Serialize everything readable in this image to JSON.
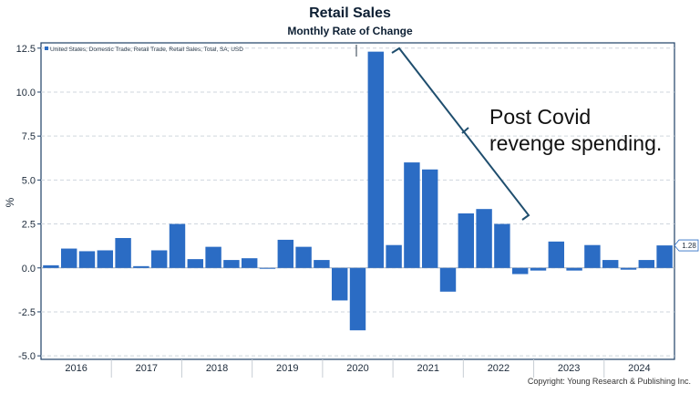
{
  "chart_data": {
    "type": "bar",
    "title": "Retail Sales",
    "subtitle": "Monthly Rate of Change",
    "ylabel": "%",
    "xlabel": "",
    "ylim": [
      -5.2,
      12.8
    ],
    "yticks": [
      12.5,
      10.0,
      7.5,
      5.0,
      2.5,
      0.0,
      -2.5,
      -5.0
    ],
    "ytick_labels": [
      "12.5",
      "10.0",
      "7.5",
      "5.0",
      "2.5",
      "0.0",
      "-2.5",
      "-5.0"
    ],
    "years": [
      "2016",
      "2017",
      "2018",
      "2019",
      "2020",
      "2021",
      "2022",
      "2023",
      "2024"
    ],
    "grid": true,
    "legend": "top-left",
    "series": [
      {
        "name": "United States, Domestic Trade, Retail Trade, Retail Sales, Total, SA, USD",
        "color": "#2b6cc4",
        "values": [
          0.15,
          1.1,
          0.95,
          1.0,
          1.7,
          0.1,
          1.0,
          2.5,
          0.5,
          1.2,
          0.45,
          0.55,
          -0.05,
          1.6,
          1.2,
          0.45,
          -1.85,
          -3.55,
          12.3,
          1.3,
          6.0,
          5.6,
          -1.35,
          3.1,
          3.35,
          2.5,
          -0.35,
          -0.15,
          1.5,
          -0.15,
          1.3,
          0.45,
          -0.1,
          0.45,
          1.28
        ]
      }
    ],
    "last_value_label": "1.28",
    "annotation": {
      "line1": "Post Covid",
      "line2": "revenge spending."
    }
  },
  "footer": {
    "copyright": "Copyright: Young Research & Publishing Inc."
  },
  "colors": {
    "bar": "#2b6cc4",
    "axis": "#1f3f66",
    "grid": "#cfd6de",
    "annotation": "#1f4e6e"
  }
}
